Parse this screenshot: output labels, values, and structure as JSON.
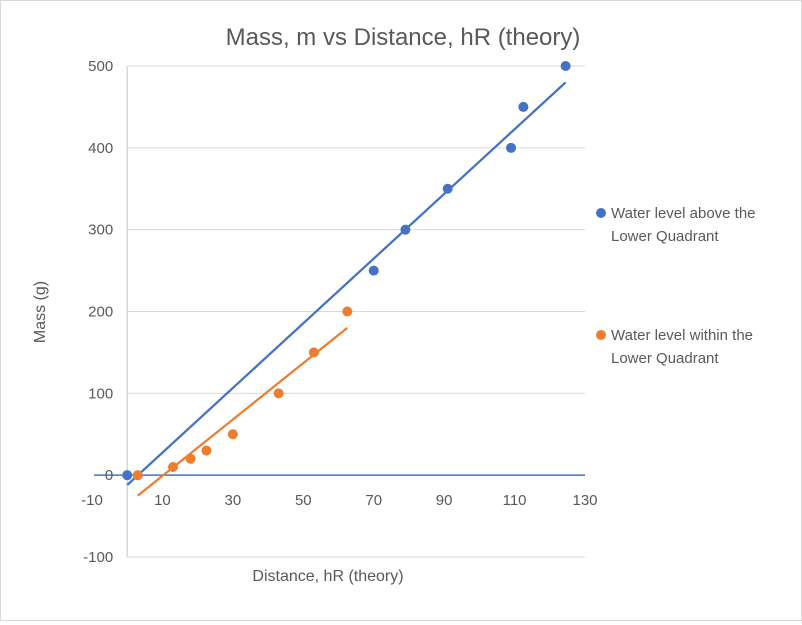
{
  "chart_data": {
    "type": "scatter",
    "title": "Mass, m vs Distance, hR (theory)",
    "xlabel": "Distance, hR (theory)",
    "ylabel": "Mass (g)",
    "xlim": [
      -10,
      130
    ],
    "ylim": [
      -100,
      500
    ],
    "x_ticks": [
      -10,
      10,
      30,
      50,
      70,
      90,
      110,
      130
    ],
    "y_ticks": [
      -100,
      0,
      100,
      200,
      300,
      400,
      500
    ],
    "grid": true,
    "legend_position": "right",
    "colors": {
      "above": "#4472c4",
      "within": "#ed7d31"
    },
    "series": [
      {
        "name": "Water level above the Lower Quadrant",
        "legend_lines": [
          "Water level above the",
          "Lower Quadrant"
        ],
        "color": "#4472c4",
        "x": [
          0,
          70,
          79,
          91,
          109,
          112.5,
          124.5
        ],
        "y": [
          0,
          250,
          300,
          350,
          400,
          450,
          500
        ],
        "trendline": {
          "x": [
            0,
            124.5
          ],
          "y": [
            -12,
            480
          ]
        }
      },
      {
        "name": "Water level within the Lower Quadrant",
        "legend_lines": [
          "Water level within the",
          "Lower Quadrant"
        ],
        "color": "#ed7d31",
        "x": [
          3,
          13,
          18,
          22.5,
          30,
          43,
          53,
          62.5
        ],
        "y": [
          0,
          10,
          20,
          30,
          50,
          100,
          150,
          200
        ],
        "trendline": {
          "x": [
            3,
            62.5
          ],
          "y": [
            -25,
            180
          ]
        }
      }
    ]
  }
}
